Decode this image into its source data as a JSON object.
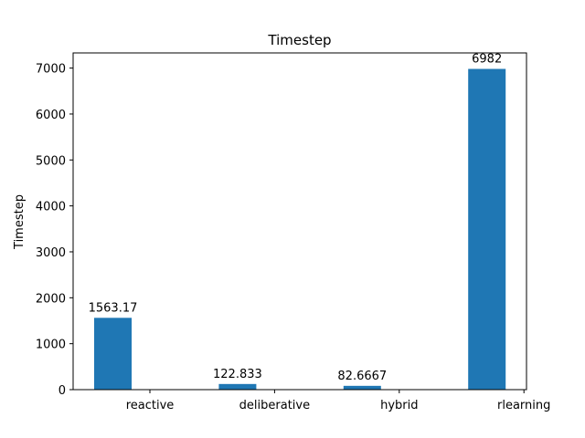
{
  "chart_data": {
    "type": "bar",
    "title": "Timestep",
    "xlabel": "",
    "ylabel": "Timestep",
    "categories": [
      "reactive",
      "deliberative",
      "hybrid",
      "rlearning"
    ],
    "values": [
      1563.17,
      122.833,
      82.6667,
      6982
    ],
    "value_labels": [
      "1563.17",
      "122.833",
      "82.6667",
      "6982"
    ],
    "ylim": [
      0,
      7330
    ],
    "yticks": [
      0,
      1000,
      2000,
      3000,
      4000,
      5000,
      6000,
      7000
    ],
    "grid": false,
    "bar_color": "#1f77b4"
  }
}
